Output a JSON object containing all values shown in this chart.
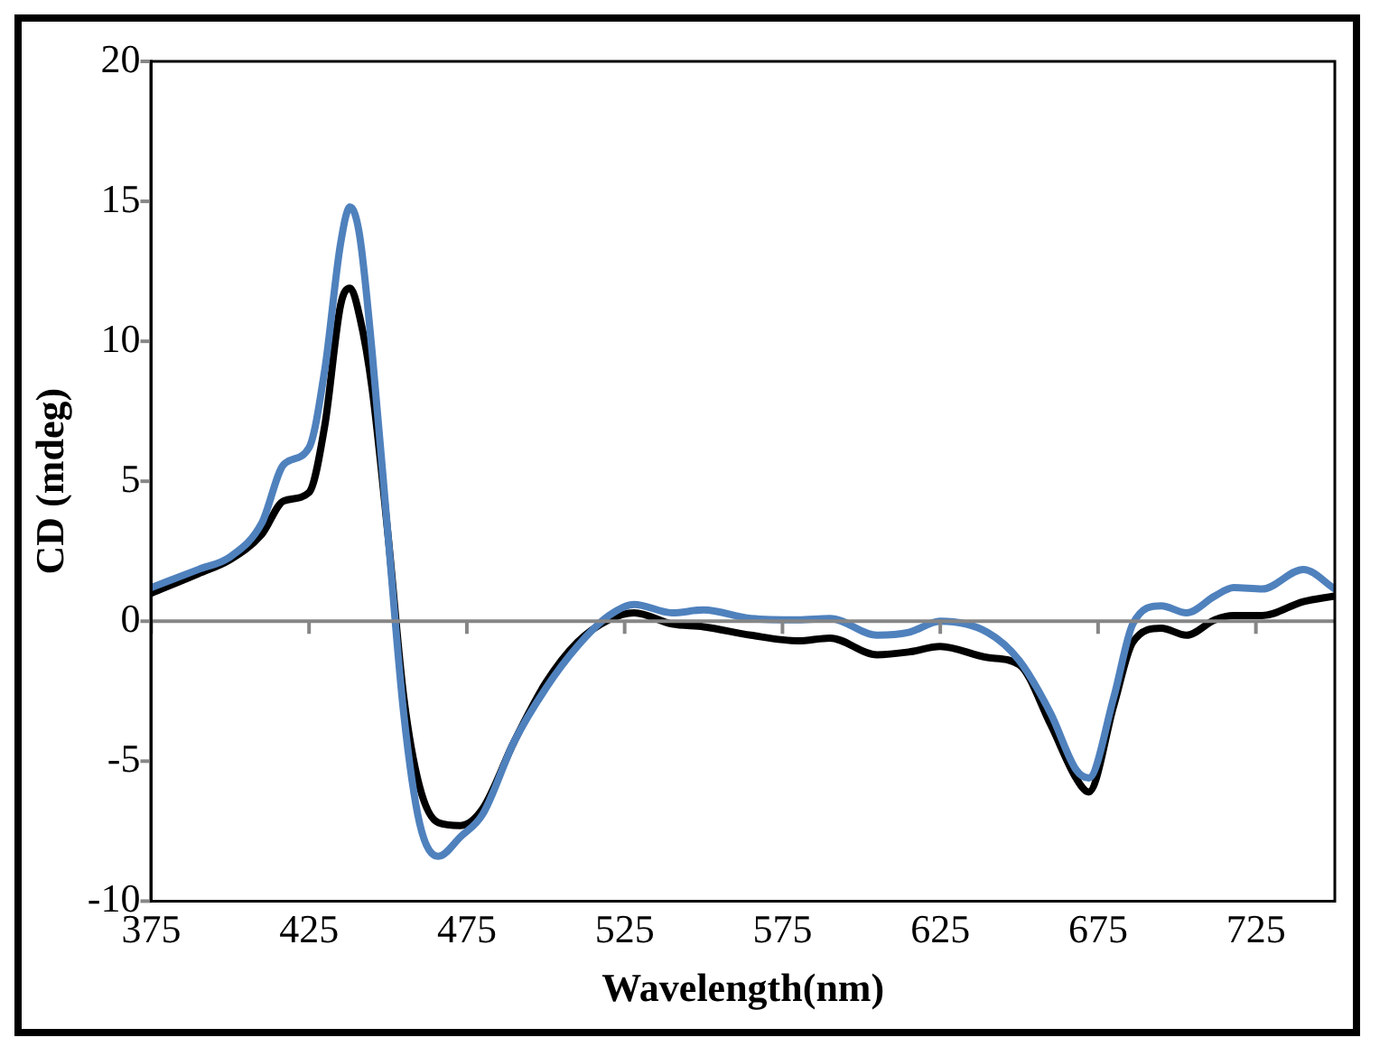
{
  "chart_data": {
    "type": "line",
    "xlabel": "Wavelength(nm)",
    "ylabel": "CD (mdeg)",
    "xlim": [
      375,
      750
    ],
    "xticks": [
      375,
      425,
      475,
      525,
      575,
      625,
      675,
      725
    ],
    "ylim": [
      -10,
      20
    ],
    "yticks": [
      -10,
      -5,
      0,
      5,
      10,
      15,
      20
    ],
    "grid": false,
    "ref_lines": [
      {
        "axis": "y",
        "value": 0,
        "color": "#868686"
      }
    ],
    "legend": false,
    "marker": "none",
    "line_style": "solid",
    "x": [
      375,
      390,
      400,
      410,
      417,
      425,
      430,
      435,
      438,
      441,
      445,
      450,
      455,
      460,
      466,
      473,
      480,
      490,
      500,
      510,
      520,
      528,
      540,
      550,
      565,
      580,
      590,
      605,
      615,
      625,
      640,
      650,
      660,
      668,
      672,
      680,
      686,
      695,
      703,
      712,
      718,
      727,
      740,
      750
    ],
    "series": [
      {
        "color": "#4f81bd",
        "values": [
          1.2,
          1.85,
          2.3,
          3.5,
          5.6,
          6.2,
          9,
          13.5,
          14.8,
          13.8,
          9.6,
          3.1,
          -3.3,
          -7.2,
          -8.4,
          -7.7,
          -6.9,
          -4.3,
          -2.4,
          -0.9,
          0.2,
          0.6,
          0.3,
          0.4,
          0.1,
          0.05,
          0.1,
          -0.5,
          -0.4,
          0,
          -0.4,
          -1.4,
          -3.3,
          -5.3,
          -5.6,
          -2.7,
          -0.1,
          0.55,
          0.3,
          0.9,
          1.2,
          1.15,
          1.85,
          1.15
        ]
      },
      {
        "color": "#000000",
        "values": [
          1.0,
          1.7,
          2.2,
          3.1,
          4.3,
          4.6,
          7,
          11.3,
          11.9,
          10.9,
          8.3,
          3.1,
          -2.7,
          -5.9,
          -7.2,
          -7.3,
          -6.7,
          -4.3,
          -2.2,
          -0.75,
          0.05,
          0.3,
          -0.1,
          -0.2,
          -0.5,
          -0.7,
          -0.6,
          -1.2,
          -1.1,
          -0.9,
          -1.3,
          -1.55,
          -3.7,
          -5.6,
          -6.1,
          -3.0,
          -0.75,
          -0.25,
          -0.5,
          0.05,
          0.2,
          0.2,
          0.7,
          0.9
        ]
      }
    ]
  }
}
